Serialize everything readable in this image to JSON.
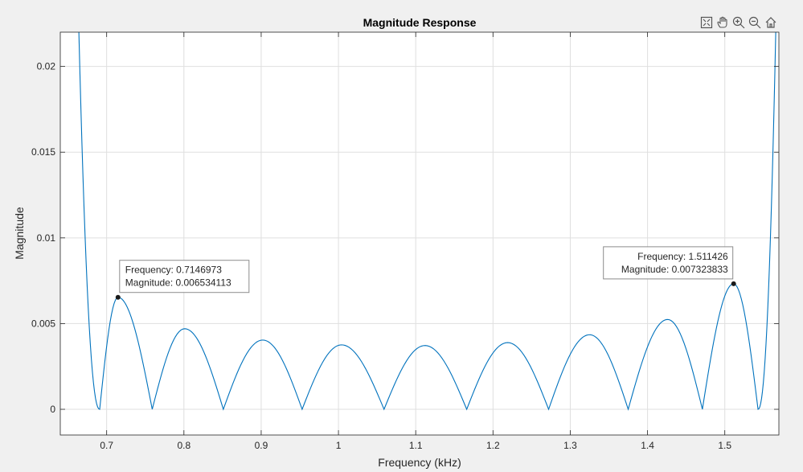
{
  "chart_data": {
    "type": "line",
    "title": "Magnitude Response",
    "xlabel": "Frequency (kHz)",
    "ylabel": "Magnitude",
    "xlim": [
      0.64,
      1.57
    ],
    "ylim": [
      -0.0015,
      0.022
    ],
    "xticks": [
      0.7,
      0.8,
      0.9,
      1,
      1.1,
      1.2,
      1.3,
      1.4,
      1.5
    ],
    "xtick_labels": [
      "0.7",
      "0.8",
      "0.9",
      "1",
      "1.1",
      "1.2",
      "1.3",
      "1.4",
      "1.5"
    ],
    "yticks": [
      0,
      0.005,
      0.01,
      0.015,
      0.02
    ],
    "ytick_labels": [
      "0",
      "0.005",
      "0.01",
      "0.015",
      "0.02"
    ],
    "grid": true,
    "line_color": "#0072bd",
    "series": [
      {
        "zeros": [
          0.691,
          0.759,
          0.851,
          0.953,
          1.059,
          1.166,
          1.272,
          1.375,
          1.471,
          1.543
        ],
        "peaks": [
          {
            "x": 0.7146973,
            "y": 0.006534113
          },
          {
            "x": 0.801,
            "y": 0.0047
          },
          {
            "x": 0.902,
            "y": 0.00404
          },
          {
            "x": 1.004,
            "y": 0.00376
          },
          {
            "x": 1.112,
            "y": 0.00372
          },
          {
            "x": 1.219,
            "y": 0.00389
          },
          {
            "x": 1.325,
            "y": 0.00435
          },
          {
            "x": 1.426,
            "y": 0.00524
          },
          {
            "x": 1.511426,
            "y": 0.007323833
          }
        ],
        "left_edge": [
          {
            "x": 0.664,
            "y": 0.0221
          },
          {
            "x": 0.691,
            "y": 0
          }
        ],
        "right_edge": [
          {
            "x": 1.543,
            "y": 0
          },
          {
            "x": 1.566,
            "y": 0.0221
          }
        ]
      }
    ],
    "annotations": [
      {
        "x": 0.7146973,
        "y": 0.006534113,
        "line1": "Frequency: 0.7146973",
        "line2": "Magnitude: 0.006534113",
        "box_side": "right"
      },
      {
        "x": 1.511426,
        "y": 0.007323833,
        "line1": "Frequency: 1.511426",
        "line2": "Magnitude: 0.007323833",
        "box_side": "left"
      }
    ]
  },
  "toolbar": {
    "icons": [
      "restore-view-icon",
      "pan-icon",
      "zoom-in-icon",
      "zoom-out-icon",
      "home-icon"
    ]
  }
}
